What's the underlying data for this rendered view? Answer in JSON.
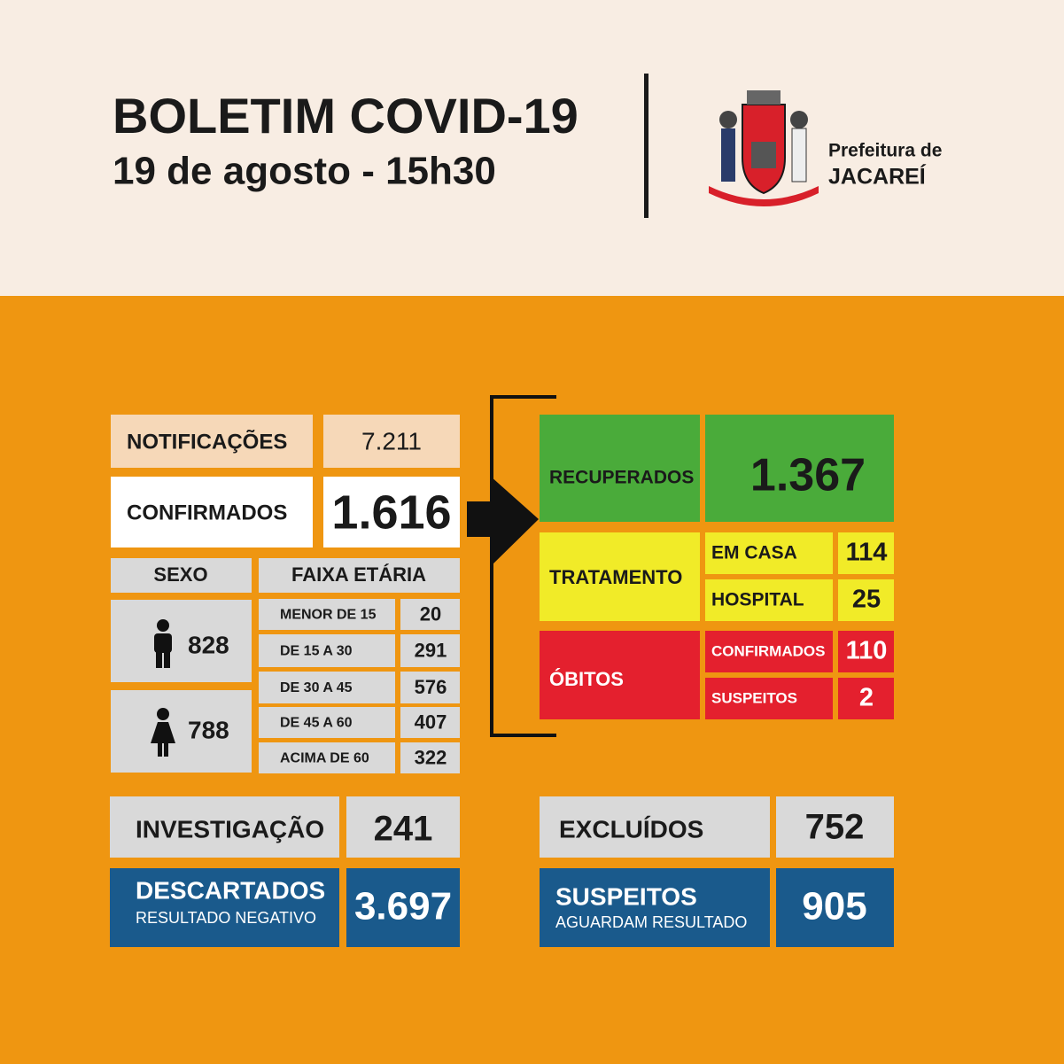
{
  "header": {
    "title": "BOLETIM COVID-19",
    "subtitle": "19 de agosto - 15h30"
  },
  "logo": {
    "line1": "Prefeitura de",
    "line2": "JACAREÍ"
  },
  "notificacoes": {
    "label": "NOTIFICAÇÕES",
    "value": "7.211"
  },
  "confirmados": {
    "label": "CONFIRMADOS",
    "value": "1.616"
  },
  "sexo": {
    "label": "SEXO",
    "masculino": "828",
    "feminino": "788"
  },
  "faixa_etaria": {
    "label": "FAIXA ETÁRIA",
    "rows": [
      [
        "MENOR DE 15",
        "20"
      ],
      [
        "DE 15 A 30",
        "291"
      ],
      [
        "DE 30 A 45",
        "576"
      ],
      [
        "DE 45 A 60",
        "407"
      ],
      [
        "ACIMA DE 60",
        "322"
      ]
    ]
  },
  "investigacao": {
    "label": "INVESTIGAÇÃO",
    "value": "241"
  },
  "descartados": {
    "label": "DESCARTADOS",
    "sublabel": "RESULTADO NEGATIVO",
    "value": "3.697"
  },
  "recuperados": {
    "label": "RECUPERADOS",
    "value": "1.367"
  },
  "tratamento": {
    "label": "TRATAMENTO",
    "rows": [
      [
        "EM CASA",
        "114"
      ],
      [
        "HOSPITAL",
        "25"
      ]
    ]
  },
  "obitos": {
    "label": "ÓBITOS",
    "rows": [
      [
        "CONFIRMADOS",
        "110"
      ],
      [
        "SUSPEITOS",
        "2"
      ]
    ]
  },
  "excluidos": {
    "label": "EXCLUÍDOS",
    "value": "752"
  },
  "suspeitos": {
    "label": "SUSPEITOS",
    "sublabel": "AGUARDAM RESULTADO",
    "value": "905"
  }
}
